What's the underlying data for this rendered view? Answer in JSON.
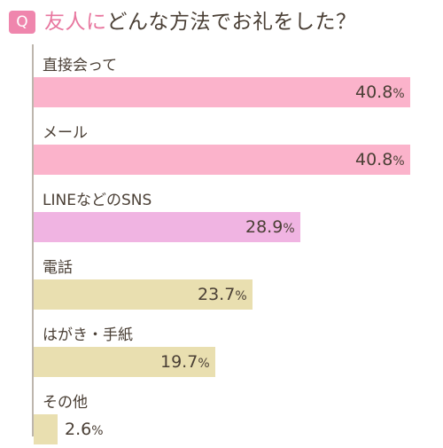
{
  "title": {
    "badge": "Q",
    "highlight": "友人に",
    "rest": "どんな方法でお礼をした？"
  },
  "chart_data": {
    "type": "bar",
    "orientation": "horizontal",
    "categories": [
      "直接会って",
      "メール",
      "LINEなどのSNS",
      "電話",
      "はがき・手紙",
      "その他"
    ],
    "values": [
      40.8,
      40.8,
      28.9,
      23.7,
      19.7,
      2.6
    ],
    "value_labels": [
      "40.8",
      "40.8",
      "28.9",
      "23.7",
      "19.7",
      "2.6"
    ],
    "unit": "%",
    "xlim": [
      0,
      40.8
    ],
    "bar_colors": [
      "#fbb3cb",
      "#fbb3cb",
      "#f0b4e2",
      "#e9dfb0",
      "#e9dfb0",
      "#e9dfb0"
    ],
    "grid": false
  }
}
